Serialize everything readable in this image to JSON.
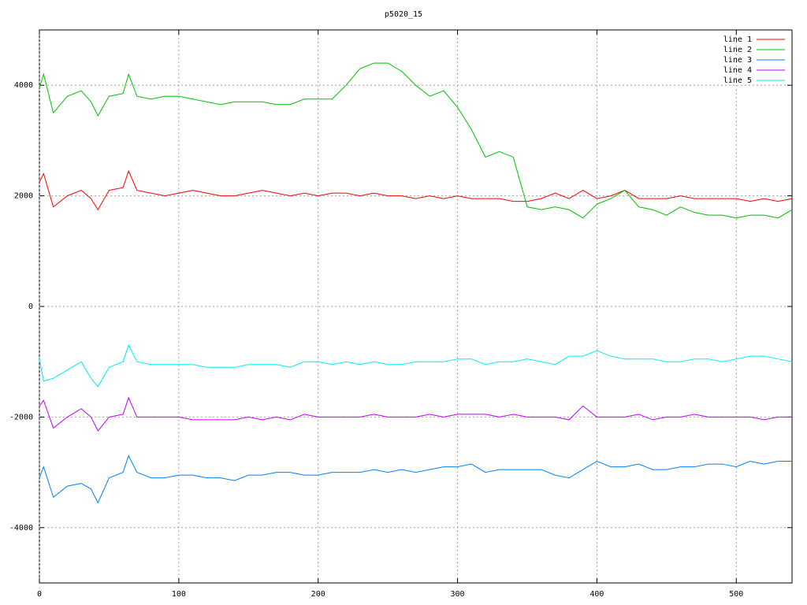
{
  "chart_data": {
    "type": "line",
    "title": "p5020_15",
    "x": [
      0,
      3,
      10,
      20,
      30,
      37,
      42,
      50,
      60,
      64,
      70,
      80,
      90,
      100,
      110,
      120,
      130,
      140,
      150,
      160,
      170,
      180,
      190,
      200,
      210,
      220,
      230,
      240,
      250,
      260,
      270,
      280,
      290,
      300,
      310,
      320,
      330,
      340,
      350,
      360,
      370,
      380,
      390,
      400,
      410,
      420,
      430,
      440,
      450,
      460,
      470,
      480,
      490,
      500,
      510,
      520,
      530,
      540
    ],
    "series": [
      {
        "name": "line 1",
        "color": "#ff0000",
        "values": [
          2250,
          2400,
          1800,
          2000,
          2100,
          1950,
          1750,
          2100,
          2150,
          2450,
          2100,
          2050,
          2000,
          2050,
          2100,
          2050,
          2000,
          2000,
          2050,
          2100,
          2050,
          2000,
          2050,
          2000,
          2050,
          2050,
          2000,
          2050,
          2000,
          2000,
          1950,
          2000,
          1950,
          2000,
          1950,
          1950,
          1950,
          1900,
          1900,
          1950,
          2050,
          1950,
          2100,
          1950,
          2000,
          2100,
          1950,
          1950,
          1950,
          2000,
          1950,
          1950,
          1950,
          1950,
          1900,
          1950,
          1900,
          1950
        ]
      },
      {
        "name": "line 2",
        "color": "#00c000",
        "values": [
          3950,
          4200,
          3500,
          3800,
          3900,
          3700,
          3450,
          3800,
          3850,
          4200,
          3800,
          3750,
          3800,
          3800,
          3750,
          3700,
          3650,
          3700,
          3700,
          3700,
          3650,
          3650,
          3750,
          3750,
          3750,
          4000,
          4300,
          4400,
          4400,
          4250,
          4000,
          3800,
          3900,
          3600,
          3200,
          2700,
          2800,
          2700,
          1800,
          1750,
          1800,
          1750,
          1600,
          1850,
          1950,
          2100,
          1800,
          1750,
          1650,
          1800,
          1700,
          1650,
          1650,
          1600,
          1650,
          1650,
          1600,
          1750
        ]
      },
      {
        "name": "line 3",
        "color": "#0080ff",
        "values": [
          -3100,
          -2900,
          -3450,
          -3250,
          -3200,
          -3300,
          -3550,
          -3100,
          -3000,
          -2700,
          -3000,
          -3100,
          -3100,
          -3050,
          -3050,
          -3100,
          -3100,
          -3150,
          -3050,
          -3050,
          -3000,
          -3000,
          -3050,
          -3050,
          -3000,
          -3000,
          -3000,
          -2950,
          -3000,
          -2950,
          -3000,
          -2950,
          -2900,
          -2900,
          -2850,
          -3000,
          -2950,
          -2950,
          -2950,
          -2950,
          -3050,
          -3100,
          -2950,
          -2800,
          -2900,
          -2900,
          -2850,
          -2950,
          -2950,
          -2900,
          -2900,
          -2850,
          -2850,
          -2900,
          -2800,
          -2850,
          -2800,
          -2800
        ]
      },
      {
        "name": "line 4",
        "color": "#c000ff",
        "values": [
          -1800,
          -1700,
          -2200,
          -2000,
          -1850,
          -2000,
          -2250,
          -2000,
          -1950,
          -1650,
          -2000,
          -2000,
          -2000,
          -2000,
          -2050,
          -2050,
          -2050,
          -2050,
          -2000,
          -2050,
          -2000,
          -2050,
          -1950,
          -2000,
          -2000,
          -2000,
          -2000,
          -1950,
          -2000,
          -2000,
          -2000,
          -1950,
          -2000,
          -1950,
          -1950,
          -1950,
          -2000,
          -1950,
          -2000,
          -2000,
          -2000,
          -2050,
          -1800,
          -2000,
          -2000,
          -2000,
          -1950,
          -2050,
          -2000,
          -2000,
          -1950,
          -2000,
          -2000,
          -2000,
          -2000,
          -2050,
          -2000,
          -2000
        ]
      },
      {
        "name": "line 5",
        "color": "#00eeee",
        "values": [
          -950,
          -1350,
          -1300,
          -1150,
          -1000,
          -1300,
          -1450,
          -1100,
          -1000,
          -700,
          -1000,
          -1050,
          -1050,
          -1050,
          -1050,
          -1100,
          -1100,
          -1100,
          -1050,
          -1050,
          -1050,
          -1100,
          -1000,
          -1000,
          -1050,
          -1000,
          -1050,
          -1000,
          -1050,
          -1050,
          -1000,
          -1000,
          -1000,
          -950,
          -950,
          -1050,
          -1000,
          -1000,
          -950,
          -1000,
          -1050,
          -900,
          -900,
          -800,
          -900,
          -950,
          -950,
          -950,
          -1000,
          -1000,
          -950,
          -950,
          -1000,
          -950,
          -900,
          -900,
          -950,
          -1000
        ]
      }
    ],
    "xlim": [
      0,
      540
    ],
    "ylim": [
      -5000,
      5000
    ],
    "xticks": [
      0,
      100,
      200,
      300,
      400,
      500
    ],
    "yticks": [
      -4000,
      -2000,
      0,
      2000,
      4000
    ],
    "grid": true,
    "legend": "top-right"
  }
}
